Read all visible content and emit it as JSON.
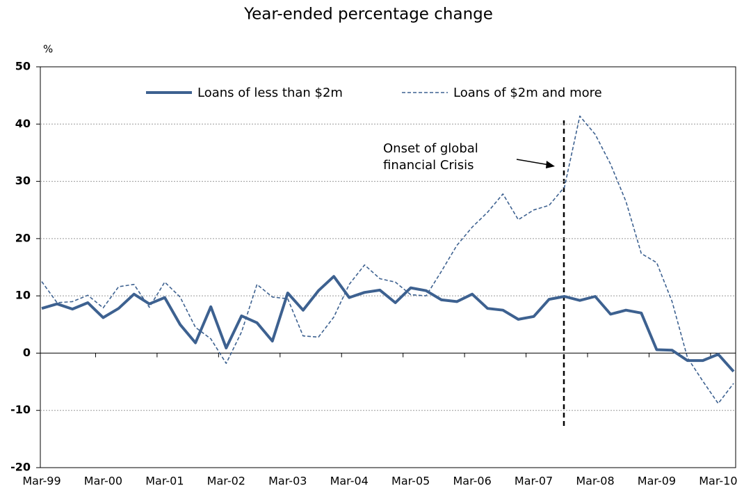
{
  "chart_data": {
    "type": "line",
    "title": "Year-ended percentage change",
    "y_label": "%",
    "annotation": [
      "Onset of global",
      "financial Crisis"
    ],
    "categories": [
      "Mar-99",
      null,
      null,
      null,
      "Mar-00",
      null,
      null,
      null,
      "Mar-01",
      null,
      null,
      null,
      "Mar-02",
      null,
      null,
      null,
      "Mar-03",
      null,
      null,
      null,
      "Mar-04",
      null,
      null,
      null,
      "Mar-05",
      null,
      null,
      null,
      "Mar-06",
      null,
      null,
      null,
      "Mar-07",
      null,
      null,
      null,
      "Mar-08",
      null,
      null,
      null,
      "Mar-09",
      null,
      null,
      null,
      "Mar-10",
      null
    ],
    "series": [
      {
        "name": "Loans of less than $2m",
        "color": "#3d6190",
        "style": "solid",
        "values": [
          7.8,
          8.6,
          7.7,
          8.8,
          6.2,
          7.8,
          10.3,
          8.6,
          9.7,
          5.0,
          1.8,
          8.1,
          0.9,
          6.5,
          5.3,
          2.1,
          10.5,
          7.5,
          10.9,
          13.4,
          9.7,
          10.6,
          11.0,
          8.8,
          11.4,
          10.9,
          9.3,
          9.0,
          10.3,
          7.8,
          7.5,
          5.9,
          6.4,
          9.4,
          9.9,
          9.2,
          9.9,
          6.8,
          7.5,
          7.0,
          0.6,
          0.5,
          -1.3,
          -1.3,
          -0.2,
          -3.2
        ]
      },
      {
        "name": "Loans of $2m and more",
        "color": "#3d6190",
        "style": "dashed",
        "values": [
          12.5,
          8.8,
          9.0,
          10.1,
          7.9,
          11.6,
          12.0,
          8.0,
          12.4,
          9.8,
          4.5,
          2.5,
          -1.8,
          3.7,
          12.0,
          9.8,
          9.5,
          3.0,
          2.8,
          6.3,
          12.0,
          15.4,
          13.0,
          12.4,
          10.2,
          10.0,
          14.3,
          18.8,
          22.0,
          24.6,
          27.8,
          23.3,
          25.0,
          25.8,
          29.0,
          41.4,
          38.2,
          33.0,
          26.5,
          17.4,
          15.8,
          9.0,
          -0.8,
          -4.9,
          -8.8,
          -5.3
        ]
      }
    ],
    "ylim": [
      -20,
      50
    ],
    "yticks": [
      -20,
      -10,
      0,
      10,
      20,
      30,
      40,
      50
    ],
    "grid": true
  }
}
